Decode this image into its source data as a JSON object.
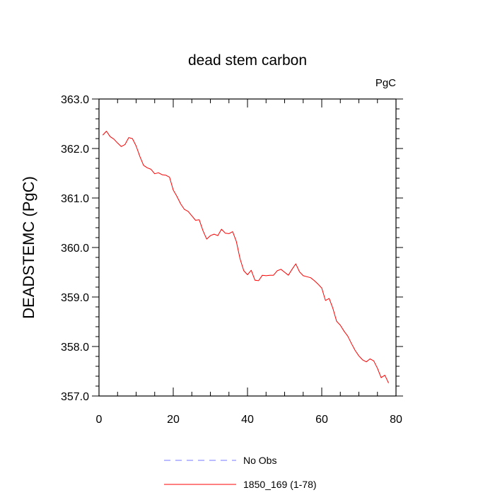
{
  "chart_data": {
    "type": "line",
    "title": "dead stem carbon",
    "units_label": "PgC",
    "xlabel": "",
    "ylabel": "DEADSTEMC  (PgC)",
    "xlim": [
      0,
      80
    ],
    "ylim": [
      357.0,
      363.0
    ],
    "x_ticks": [
      0,
      20,
      40,
      60,
      80
    ],
    "x_tick_labels": [
      "0",
      "20",
      "40",
      "60",
      "80"
    ],
    "y_ticks": [
      357.0,
      358.0,
      359.0,
      360.0,
      361.0,
      362.0,
      363.0
    ],
    "y_tick_labels": [
      "357.0",
      "358.0",
      "359.0",
      "360.0",
      "361.0",
      "362.0",
      "363.0"
    ],
    "grid": false,
    "legend_position": "bottom-center",
    "series": [
      {
        "name": "No Obs",
        "color": "#7777ff",
        "style": "dashed",
        "x": [],
        "values": []
      },
      {
        "name": "1850_169 (1-78)",
        "color": "#ff0000",
        "style": "solid",
        "x": [
          1,
          2,
          3,
          4,
          5,
          6,
          7,
          8,
          9,
          10,
          11,
          12,
          13,
          14,
          15,
          16,
          17,
          18,
          19,
          20,
          21,
          22,
          23,
          24,
          25,
          26,
          27,
          28,
          29,
          30,
          31,
          32,
          33,
          34,
          35,
          36,
          37,
          38,
          39,
          40,
          41,
          42,
          43,
          44,
          45,
          46,
          47,
          48,
          49,
          50,
          51,
          52,
          53,
          54,
          55,
          56,
          57,
          58,
          59,
          60,
          61,
          62,
          63,
          64,
          65,
          66,
          67,
          68,
          69,
          70,
          71,
          72,
          73,
          74,
          75,
          76,
          77,
          78
        ],
        "values": [
          362.27,
          362.35,
          362.24,
          362.19,
          362.11,
          362.04,
          362.08,
          362.22,
          362.2,
          362.05,
          361.84,
          361.66,
          361.61,
          361.58,
          361.49,
          361.51,
          361.47,
          361.46,
          361.42,
          361.16,
          361.03,
          360.88,
          360.77,
          360.73,
          360.64,
          360.55,
          360.56,
          360.34,
          360.17,
          360.24,
          360.27,
          360.24,
          360.37,
          360.29,
          360.28,
          360.32,
          360.12,
          359.77,
          359.53,
          359.45,
          359.54,
          359.34,
          359.33,
          359.44,
          359.43,
          359.44,
          359.44,
          359.53,
          359.56,
          359.5,
          359.44,
          359.56,
          359.67,
          359.51,
          359.43,
          359.41,
          359.39,
          359.33,
          359.26,
          359.18,
          358.93,
          358.97,
          358.77,
          358.51,
          358.43,
          358.31,
          358.21,
          358.06,
          357.92,
          357.81,
          357.73,
          357.69,
          357.75,
          357.71,
          357.56,
          357.37,
          357.42,
          357.26
        ]
      }
    ]
  }
}
